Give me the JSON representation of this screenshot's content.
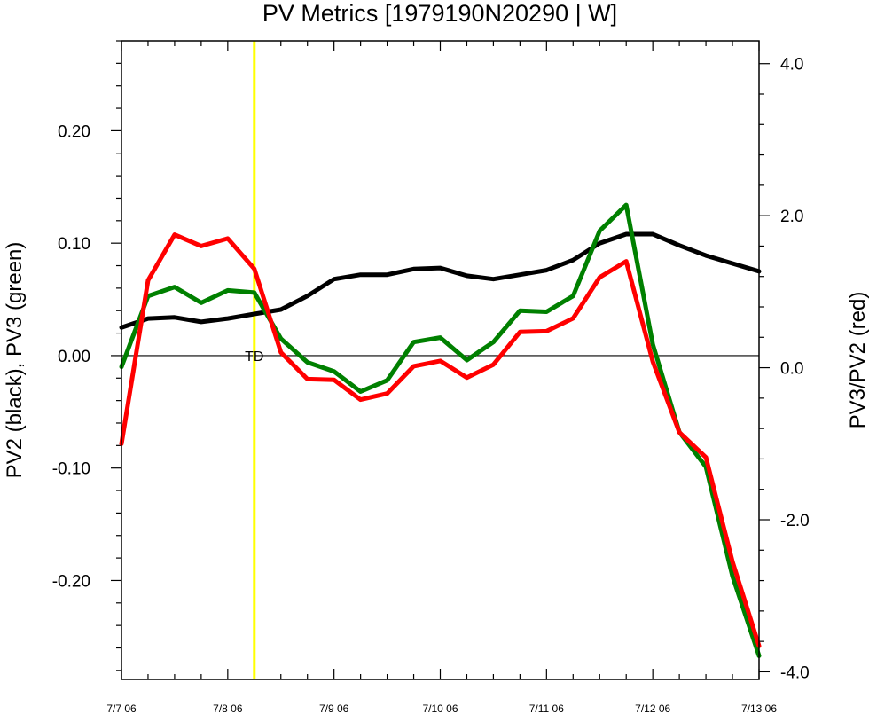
{
  "chart_data": {
    "type": "line",
    "title": "PV Metrics [1979190N20290 | W]",
    "ylabel_left": "PV2 (black), PV3 (green)",
    "ylabel_right": "PV3/PV2 (red)",
    "x_tick_labels": [
      "7/7 06",
      "7/8 06",
      "7/9 06",
      "7/10 06",
      "7/11 06",
      "7/12 06",
      "7/13 06"
    ],
    "x_range_days": [
      0,
      6
    ],
    "left_axis": {
      "ylim": [
        -0.288,
        0.28
      ],
      "tick_values": [
        -0.2,
        -0.1,
        0.0,
        0.1,
        0.2
      ],
      "tick_labels": [
        "-0.20",
        "-0.10",
        "0.00",
        "0.10",
        "0.20"
      ]
    },
    "right_axis": {
      "ylim": [
        -4.1,
        4.3
      ],
      "tick_values": [
        -4.0,
        -2.0,
        0.0,
        2.0,
        4.0
      ],
      "tick_labels": [
        "-4.0",
        "-2.0",
        "0.0",
        "2.0",
        "4.0"
      ]
    },
    "zero_line": true,
    "event_marker": {
      "x": 1.25,
      "label": "TD",
      "color": "#ffff00"
    },
    "x": [
      0,
      0.25,
      0.5,
      0.75,
      1.0,
      1.25,
      1.5,
      1.75,
      2.0,
      2.25,
      2.5,
      2.75,
      3.0,
      3.25,
      3.5,
      3.75,
      4.0,
      4.25,
      4.5,
      4.75,
      5.0,
      5.25,
      5.5,
      5.75,
      6.0
    ],
    "series": [
      {
        "axis": "left",
        "color": "#000000",
        "values": [
          0.025,
          0.033,
          0.034,
          0.03,
          0.033,
          0.037,
          0.041,
          0.053,
          0.068,
          0.072,
          0.072,
          0.077,
          0.078,
          0.071,
          0.068,
          0.072,
          0.076,
          0.085,
          0.1,
          0.108,
          0.108,
          0.098,
          0.089,
          0.082,
          0.075
        ]
      },
      {
        "axis": "left",
        "color": "#008000",
        "values": [
          -0.01,
          0.053,
          0.061,
          0.047,
          0.058,
          0.056,
          0.015,
          -0.006,
          -0.014,
          -0.032,
          -0.022,
          0.012,
          0.016,
          -0.004,
          0.012,
          0.04,
          0.039,
          0.053,
          0.111,
          0.134,
          0.01,
          -0.068,
          -0.099,
          -0.196,
          -0.267
        ]
      },
      {
        "axis": "right",
        "color": "#ff0000",
        "values": [
          -1.0,
          1.15,
          1.75,
          1.6,
          1.7,
          1.3,
          0.2,
          -0.15,
          -0.16,
          -0.42,
          -0.34,
          0.02,
          0.09,
          -0.13,
          0.04,
          0.47,
          0.48,
          0.65,
          1.19,
          1.4,
          0.08,
          -0.85,
          -1.18,
          -2.55,
          -3.66
        ]
      }
    ]
  }
}
